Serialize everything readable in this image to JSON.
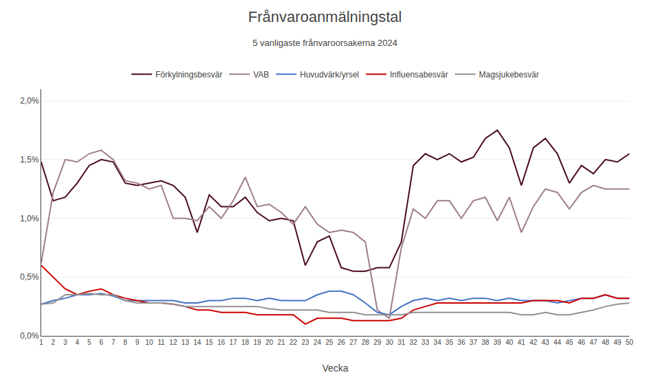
{
  "chart_data": {
    "type": "line",
    "title": "Frånvaroanmälningstal",
    "subtitle": "5 vanligaste frånvaroorsakerna 2024",
    "xlabel": "Vecka",
    "x": [
      1,
      2,
      3,
      4,
      5,
      6,
      7,
      8,
      9,
      10,
      11,
      12,
      13,
      14,
      15,
      16,
      17,
      18,
      19,
      20,
      21,
      22,
      23,
      24,
      25,
      26,
      27,
      28,
      29,
      30,
      31,
      32,
      33,
      34,
      35,
      36,
      37,
      38,
      39,
      40,
      41,
      42,
      43,
      44,
      45,
      46,
      47,
      48,
      49,
      50
    ],
    "series": [
      {
        "name": "Förkylningsbesvär",
        "color": "#4a0a1a",
        "values": [
          1.48,
          1.15,
          1.18,
          1.3,
          1.45,
          1.5,
          1.48,
          1.3,
          1.28,
          1.3,
          1.32,
          1.28,
          1.18,
          0.88,
          1.2,
          1.1,
          1.1,
          1.18,
          1.05,
          0.98,
          1.0,
          0.98,
          0.6,
          0.8,
          0.85,
          0.58,
          0.55,
          0.55,
          0.58,
          0.58,
          0.8,
          1.45,
          1.55,
          1.5,
          1.55,
          1.48,
          1.52,
          1.68,
          1.75,
          1.6,
          1.28,
          1.6,
          1.68,
          1.55,
          1.3,
          1.45,
          1.38,
          1.5,
          1.48,
          1.55
        ]
      },
      {
        "name": "VAB",
        "color": "#9e7d8a",
        "values": [
          0.62,
          1.22,
          1.5,
          1.48,
          1.55,
          1.58,
          1.5,
          1.32,
          1.3,
          1.25,
          1.28,
          1.0,
          1.0,
          0.98,
          1.1,
          1.0,
          1.15,
          1.35,
          1.1,
          1.12,
          1.05,
          0.95,
          1.1,
          0.95,
          0.88,
          0.9,
          0.88,
          0.8,
          0.22,
          0.15,
          0.75,
          1.08,
          1.0,
          1.15,
          1.15,
          1.0,
          1.15,
          1.18,
          0.98,
          1.18,
          0.88,
          1.1,
          1.25,
          1.22,
          1.08,
          1.22,
          1.28,
          1.25,
          1.25,
          1.25
        ]
      },
      {
        "name": "Huvudvärk/yrsel",
        "color": "#4472c4",
        "values": [
          0.27,
          0.3,
          0.32,
          0.35,
          0.35,
          0.36,
          0.34,
          0.3,
          0.3,
          0.3,
          0.3,
          0.3,
          0.28,
          0.28,
          0.3,
          0.3,
          0.32,
          0.32,
          0.3,
          0.32,
          0.3,
          0.3,
          0.3,
          0.35,
          0.38,
          0.38,
          0.35,
          0.28,
          0.2,
          0.18,
          0.25,
          0.3,
          0.32,
          0.3,
          0.32,
          0.3,
          0.32,
          0.32,
          0.3,
          0.32,
          0.3,
          0.3,
          0.3,
          0.28,
          0.3,
          0.32,
          0.32,
          0.35,
          0.32,
          0.32
        ]
      },
      {
        "name": "Influensabesvär",
        "color": "#cc0000",
        "values": [
          0.6,
          0.5,
          0.4,
          0.35,
          0.38,
          0.4,
          0.35,
          0.32,
          0.3,
          0.28,
          0.28,
          0.27,
          0.25,
          0.22,
          0.22,
          0.2,
          0.2,
          0.2,
          0.18,
          0.18,
          0.18,
          0.18,
          0.1,
          0.15,
          0.15,
          0.15,
          0.13,
          0.13,
          0.13,
          0.13,
          0.15,
          0.22,
          0.25,
          0.28,
          0.28,
          0.28,
          0.28,
          0.28,
          0.28,
          0.28,
          0.28,
          0.3,
          0.3,
          0.3,
          0.28,
          0.32,
          0.32,
          0.35,
          0.32,
          0.32
        ]
      },
      {
        "name": "Magsjukebesvär",
        "color": "#909090",
        "values": [
          0.27,
          0.28,
          0.35,
          0.35,
          0.36,
          0.35,
          0.35,
          0.3,
          0.28,
          0.28,
          0.28,
          0.27,
          0.25,
          0.25,
          0.25,
          0.25,
          0.25,
          0.25,
          0.25,
          0.23,
          0.22,
          0.22,
          0.22,
          0.22,
          0.2,
          0.2,
          0.2,
          0.18,
          0.18,
          0.18,
          0.18,
          0.2,
          0.2,
          0.2,
          0.2,
          0.2,
          0.2,
          0.2,
          0.2,
          0.2,
          0.18,
          0.18,
          0.2,
          0.18,
          0.18,
          0.2,
          0.22,
          0.25,
          0.27,
          0.28
        ]
      }
    ],
    "xlim": [
      1,
      50
    ],
    "xticks": [
      1,
      2,
      3,
      4,
      5,
      6,
      7,
      8,
      9,
      10,
      11,
      12,
      13,
      14,
      15,
      16,
      17,
      18,
      19,
      20,
      21,
      22,
      23,
      24,
      25,
      26,
      27,
      28,
      29,
      30,
      31,
      32,
      33,
      34,
      35,
      36,
      37,
      38,
      39,
      40,
      41,
      42,
      43,
      44,
      45,
      46,
      47,
      48,
      49,
      50
    ],
    "ylim": [
      0.0,
      2.1
    ],
    "yticks": [
      {
        "value": 0.0,
        "label": "0,0%"
      },
      {
        "value": 0.5,
        "label": "0,5%"
      },
      {
        "value": 1.0,
        "label": "1,0%"
      },
      {
        "value": 1.5,
        "label": "1,5%"
      },
      {
        "value": 2.0,
        "label": "2,0%"
      }
    ],
    "grid": "y",
    "legend": "top"
  }
}
